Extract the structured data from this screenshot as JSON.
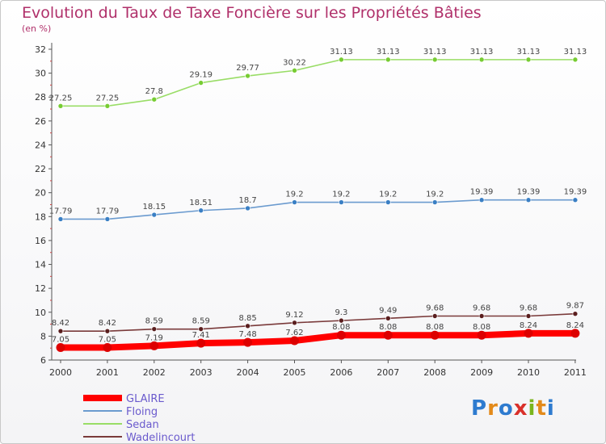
{
  "header": {
    "title": "Evolution du Taux de Taxe Foncière sur les Propriétés Bâties",
    "unit": "(en %)"
  },
  "logo": {
    "text": "Proxiti",
    "colors": [
      "#2e7bcf",
      "#e38a1a",
      "#2e7bcf",
      "#d9302a",
      "#7ab51d",
      "#e38a1a",
      "#2e7bcf"
    ]
  },
  "chart_data": {
    "type": "line",
    "categories": [
      "2000",
      "2001",
      "2002",
      "2003",
      "2004",
      "2005",
      "2006",
      "2007",
      "2008",
      "2009",
      "2010",
      "2011"
    ],
    "ylim": [
      6,
      32
    ],
    "yticks": [
      6,
      8,
      10,
      12,
      14,
      16,
      18,
      20,
      22,
      24,
      26,
      28,
      30,
      32
    ],
    "grid": false,
    "legend_position": "bottom-left",
    "series": [
      {
        "name": "GLAIRE",
        "color": "#ff0000",
        "point_color": "#dd0000",
        "thick": true,
        "values": [
          7.05,
          7.05,
          7.19,
          7.41,
          7.48,
          7.62,
          8.08,
          8.08,
          8.08,
          8.08,
          8.24,
          8.24
        ],
        "labels": [
          "7.05",
          "7.05",
          "7.19",
          "7.41",
          "7.48",
          "7.62",
          "8.08",
          "8.08",
          "8.08",
          "8.08",
          "8.24",
          "8.24"
        ]
      },
      {
        "name": "Floing",
        "color": "#6b9bcf",
        "point_color": "#3a7fc4",
        "thick": false,
        "values": [
          17.79,
          17.79,
          18.15,
          18.51,
          18.7,
          19.2,
          19.2,
          19.2,
          19.2,
          19.39,
          19.39,
          19.39
        ],
        "labels": [
          "17.79",
          "17.79",
          "18.15",
          "18.51",
          "18.7",
          "19.2",
          "19.2",
          "19.2",
          "19.2",
          "19.39",
          "19.39",
          "19.39"
        ]
      },
      {
        "name": "Sedan",
        "color": "#99dd66",
        "point_color": "#77cc33",
        "thick": false,
        "values": [
          27.25,
          27.25,
          27.8,
          29.19,
          29.77,
          30.22,
          31.13,
          31.13,
          31.13,
          31.13,
          31.13,
          31.13
        ],
        "labels": [
          "27.25",
          "27.25",
          "27.8",
          "29.19",
          "29.77",
          "30.22",
          "31.13",
          "31.13",
          "31.13",
          "31.13",
          "31.13",
          "31.13"
        ]
      },
      {
        "name": "Wadelincourt",
        "color": "#7a3a3a",
        "point_color": "#5a1e1e",
        "thick": false,
        "values": [
          8.42,
          8.42,
          8.59,
          8.59,
          8.85,
          9.12,
          9.3,
          9.49,
          9.68,
          9.68,
          9.68,
          9.87
        ],
        "labels": [
          "8.42",
          "8.42",
          "8.59",
          "8.59",
          "8.85",
          "9.12",
          "9.3",
          "9.49",
          "9.68",
          "9.68",
          "9.68",
          "9.87"
        ]
      }
    ]
  }
}
